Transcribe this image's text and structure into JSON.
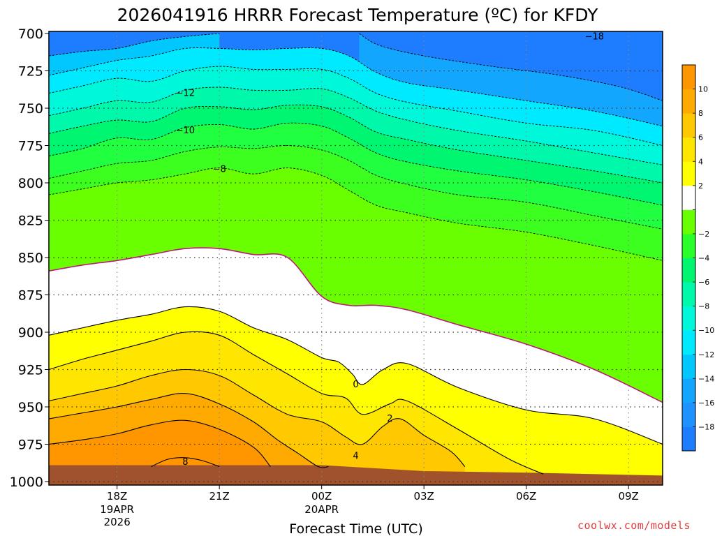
{
  "chart_data": {
    "type": "contour",
    "title": "2026041916 HRRR Forecast Temperature (ºC) for KFDY",
    "xlabel": "Forecast Time (UTC)",
    "ylabel": "",
    "y_inverted": true,
    "ylim": [
      1000,
      700
    ],
    "xlim": [
      -2,
      16
    ],
    "yticks": [
      700,
      725,
      750,
      775,
      800,
      825,
      850,
      875,
      900,
      925,
      950,
      975,
      1000
    ],
    "xticks": [
      {
        "x": 0,
        "label": "18Z",
        "sub": [
          "19APR",
          "2026"
        ]
      },
      {
        "x": 3,
        "label": "21Z",
        "sub": []
      },
      {
        "x": 6,
        "label": "00Z",
        "sub": [
          "20APR"
        ]
      },
      {
        "x": 9,
        "label": "03Z",
        "sub": []
      },
      {
        "x": 12,
        "label": "06Z",
        "sub": []
      },
      {
        "x": 15,
        "label": "09Z",
        "sub": []
      }
    ],
    "grid": true,
    "colorbar": {
      "position": "right",
      "levels": [
        -20,
        -18,
        -16,
        -14,
        -12,
        -10,
        -8,
        -6,
        -4,
        -2,
        0,
        2,
        4,
        6,
        8,
        10,
        12
      ],
      "colors": [
        "#1e7dff",
        "#1e93ff",
        "#13a6ff",
        "#00c8ff",
        "#00eaff",
        "#00f8da",
        "#00f8aa",
        "#00f570",
        "#2bff2b",
        "#6aff00",
        "#ffffff",
        "#ffff00",
        "#ffe600",
        "#ffc800",
        "#ffaa00",
        "#ff9600"
      ],
      "labels": [
        "−18",
        "−16",
        "−14",
        "−12",
        "−10",
        "−8",
        "−6",
        "−4",
        "−2",
        "",
        "2",
        "4",
        "6",
        "8",
        "10"
      ]
    },
    "contours": [
      {
        "level": -18,
        "points": [
          [
            7.1,
            700
          ],
          [
            7.7,
            708
          ],
          [
            9,
            715
          ],
          [
            11,
            722
          ],
          [
            13,
            728
          ],
          [
            14.8,
            736
          ],
          [
            16,
            745
          ]
        ]
      },
      {
        "level": -16,
        "points": [
          [
            -2,
            715
          ],
          [
            -1,
            712
          ],
          [
            0,
            710
          ],
          [
            1,
            705
          ],
          [
            2,
            702
          ],
          [
            3,
            700
          ]
        ]
      },
      {
        "level": -14,
        "points": [
          [
            -2,
            728
          ],
          [
            -1,
            723
          ],
          [
            0,
            718
          ],
          [
            1,
            715
          ],
          [
            2,
            710
          ],
          [
            3,
            710
          ],
          [
            4,
            711
          ],
          [
            5,
            710
          ],
          [
            6,
            710
          ],
          [
            6.8,
            715
          ],
          [
            7.6,
            726
          ],
          [
            8.5,
            733
          ],
          [
            10,
            738
          ],
          [
            12,
            745
          ],
          [
            14,
            752
          ],
          [
            16,
            762
          ]
        ]
      },
      {
        "level": -12,
        "points": [
          [
            -2,
            740
          ],
          [
            -1,
            735
          ],
          [
            0,
            730
          ],
          [
            1,
            732
          ],
          [
            2,
            725
          ],
          [
            3,
            722
          ],
          [
            4,
            724
          ],
          [
            5,
            724
          ],
          [
            6,
            724
          ],
          [
            6.8,
            730
          ],
          [
            7.6,
            740
          ],
          [
            8.5,
            746
          ],
          [
            10,
            752
          ],
          [
            12,
            760
          ],
          [
            14,
            765
          ],
          [
            16,
            775
          ]
        ]
      },
      {
        "level": -10,
        "points": [
          [
            -2,
            755
          ],
          [
            -1,
            750
          ],
          [
            0,
            745
          ],
          [
            1,
            746
          ],
          [
            2,
            738
          ],
          [
            3,
            736
          ],
          [
            4,
            738
          ],
          [
            5,
            738
          ],
          [
            6,
            737
          ],
          [
            6.8,
            743
          ],
          [
            7.6,
            752
          ],
          [
            8.5,
            758
          ],
          [
            10,
            765
          ],
          [
            12,
            772
          ],
          [
            14,
            780
          ],
          [
            16,
            788
          ]
        ]
      },
      {
        "level": -8,
        "points": [
          [
            -2,
            767
          ],
          [
            -1,
            762
          ],
          [
            0,
            758
          ],
          [
            1,
            759
          ],
          [
            2,
            750
          ],
          [
            3,
            749
          ],
          [
            4,
            751
          ],
          [
            5,
            748
          ],
          [
            6,
            749
          ],
          [
            6.8,
            756
          ],
          [
            7.6,
            766
          ],
          [
            8.5,
            771
          ],
          [
            10,
            778
          ],
          [
            12,
            785
          ],
          [
            14,
            792
          ],
          [
            16,
            800
          ]
        ]
      },
      {
        "level": -6,
        "points": [
          [
            -2,
            782
          ],
          [
            -1,
            777
          ],
          [
            0,
            770
          ],
          [
            1,
            771
          ],
          [
            2,
            763
          ],
          [
            3,
            761
          ],
          [
            4,
            764
          ],
          [
            5,
            760
          ],
          [
            6,
            762
          ],
          [
            6.8,
            770
          ],
          [
            7.6,
            780
          ],
          [
            8.5,
            786
          ],
          [
            10,
            792
          ],
          [
            12,
            798
          ],
          [
            14,
            806
          ],
          [
            16,
            815
          ]
        ]
      },
      {
        "level": -4,
        "points": [
          [
            -2,
            797
          ],
          [
            -1,
            792
          ],
          [
            0,
            787
          ],
          [
            1,
            785
          ],
          [
            2,
            779
          ],
          [
            3,
            776
          ],
          [
            4,
            777
          ],
          [
            5,
            775
          ],
          [
            6,
            778
          ],
          [
            6.8,
            785
          ],
          [
            7.6,
            795
          ],
          [
            8.5,
            801
          ],
          [
            10,
            808
          ],
          [
            12,
            813
          ],
          [
            14,
            822
          ],
          [
            16,
            831
          ]
        ]
      },
      {
        "level": -2,
        "points": [
          [
            -2,
            808
          ],
          [
            -1,
            804
          ],
          [
            0,
            800
          ],
          [
            1,
            798
          ],
          [
            2,
            794
          ],
          [
            3,
            790
          ],
          [
            4,
            794
          ],
          [
            5,
            790
          ],
          [
            6,
            795
          ],
          [
            6.8,
            805
          ],
          [
            7.6,
            815
          ],
          [
            8.5,
            820
          ],
          [
            10,
            827
          ],
          [
            12,
            833
          ],
          [
            14,
            842
          ],
          [
            16,
            852
          ]
        ]
      },
      {
        "level": -1,
        "points": [
          [
            -2,
            828
          ],
          [
            -1,
            823
          ],
          [
            0,
            818
          ],
          [
            1,
            815
          ],
          [
            2,
            809
          ],
          [
            3,
            805
          ],
          [
            4,
            808
          ],
          [
            5,
            804
          ],
          [
            6,
            827
          ],
          [
            6.8,
            840
          ],
          [
            7.6,
            850
          ],
          [
            8.5,
            857
          ],
          [
            10,
            865
          ],
          [
            12,
            877
          ],
          [
            14,
            894
          ],
          [
            16,
            920
          ]
        ]
      },
      {
        "level": 0,
        "points": [
          [
            -2,
            859
          ],
          [
            -1,
            855
          ],
          [
            0,
            852
          ],
          [
            1,
            848
          ],
          [
            2,
            844
          ],
          [
            3,
            844
          ],
          [
            4,
            848
          ],
          [
            5,
            850
          ],
          [
            6,
            876
          ],
          [
            6.8,
            882
          ],
          [
            7.6,
            882
          ],
          [
            8.5,
            885
          ],
          [
            10,
            895
          ],
          [
            12,
            908
          ],
          [
            14,
            925
          ],
          [
            16,
            947
          ]
        ]
      },
      {
        "level": 1,
        "points": [
          [
            -2,
            872
          ],
          [
            -1,
            867
          ],
          [
            0,
            864
          ],
          [
            1,
            862
          ],
          [
            2,
            860
          ],
          [
            3,
            861
          ],
          [
            4,
            866
          ],
          [
            5,
            870
          ],
          [
            6,
            880
          ],
          [
            6.5,
            890
          ],
          [
            6.9,
            900
          ],
          [
            7.2,
            905
          ],
          [
            7.6,
            898
          ],
          [
            8.5,
            898
          ],
          [
            10,
            907
          ],
          [
            12,
            918
          ],
          [
            14,
            935
          ],
          [
            16,
            960
          ]
        ]
      },
      {
        "level": 2,
        "points": [
          [
            -2,
            902
          ],
          [
            -1,
            897
          ],
          [
            0,
            892
          ],
          [
            1,
            888
          ],
          [
            2,
            883
          ],
          [
            3,
            886
          ],
          [
            4,
            897
          ],
          [
            5,
            905
          ],
          [
            6,
            917
          ],
          [
            6.5,
            920
          ],
          [
            6.9,
            928
          ],
          [
            7.2,
            935
          ],
          [
            7.8,
            925
          ],
          [
            8.5,
            921
          ],
          [
            10,
            937
          ],
          [
            12,
            952
          ],
          [
            14,
            958
          ],
          [
            16,
            975
          ]
        ]
      },
      {
        "level": 4,
        "points": [
          [
            -2,
            925
          ],
          [
            -1,
            918
          ],
          [
            0,
            912
          ],
          [
            1,
            906
          ],
          [
            2,
            900
          ],
          [
            3,
            902
          ],
          [
            4,
            915
          ],
          [
            5,
            928
          ],
          [
            6,
            941
          ],
          [
            6.7,
            944
          ],
          [
            7.2,
            955
          ],
          [
            8,
            948
          ],
          [
            8.5,
            946
          ],
          [
            10,
            965
          ],
          [
            11.5,
            985
          ],
          [
            12.5,
            995
          ]
        ]
      },
      {
        "level": 6,
        "points": [
          [
            -2,
            946
          ],
          [
            -1,
            941
          ],
          [
            0,
            936
          ],
          [
            1,
            929
          ],
          [
            2,
            925
          ],
          [
            3,
            929
          ],
          [
            4,
            942
          ],
          [
            5,
            955
          ],
          [
            6,
            960
          ],
          [
            6.7,
            970
          ],
          [
            7.2,
            975
          ],
          [
            7.8,
            963
          ],
          [
            8.3,
            958
          ],
          [
            9,
            969
          ],
          [
            9.8,
            980
          ],
          [
            10.2,
            990
          ]
        ]
      },
      {
        "level": 8,
        "points": [
          [
            -2,
            958
          ],
          [
            -1,
            954
          ],
          [
            0,
            950
          ],
          [
            1,
            945
          ],
          [
            2,
            941
          ],
          [
            3,
            948
          ],
          [
            4,
            960
          ],
          [
            4.7,
            972
          ],
          [
            5.3,
            981
          ],
          [
            5.9,
            990
          ],
          [
            6.2,
            990
          ]
        ]
      },
      {
        "level": 10,
        "points": [
          [
            -2,
            975
          ],
          [
            -1,
            972
          ],
          [
            0,
            968
          ],
          [
            1,
            962
          ],
          [
            2,
            959
          ],
          [
            3,
            965
          ],
          [
            4,
            977
          ],
          [
            4.5,
            990
          ]
        ]
      },
      {
        "level": 12,
        "points": [
          [
            1,
            990
          ],
          [
            1.5,
            985
          ],
          [
            2,
            984
          ],
          [
            2.5,
            986
          ],
          [
            3,
            990
          ]
        ]
      }
    ],
    "contour_labels": [
      {
        "text": "−18",
        "x": 14.0,
        "y": 702
      },
      {
        "text": "−12",
        "x": 2.0,
        "y": 740
      },
      {
        "text": "−10",
        "x": 2.0,
        "y": 765
      },
      {
        "text": "−8",
        "x": 3.0,
        "y": 791
      },
      {
        "text": "0",
        "x": 7.0,
        "y": 935
      },
      {
        "text": "2",
        "x": 8.0,
        "y": 958
      },
      {
        "text": "4",
        "x": 7.0,
        "y": 983
      },
      {
        "text": "8",
        "x": 2.0,
        "y": 987
      }
    ],
    "ground": {
      "color": "#a0522d",
      "surface": [
        [
          -2,
          989
        ],
        [
          2.6,
          989
        ],
        [
          6,
          989
        ],
        [
          9,
          993
        ],
        [
          12,
          994
        ],
        [
          16,
          996
        ]
      ]
    }
  },
  "footer": {
    "credit": "coolwx.com/models"
  }
}
